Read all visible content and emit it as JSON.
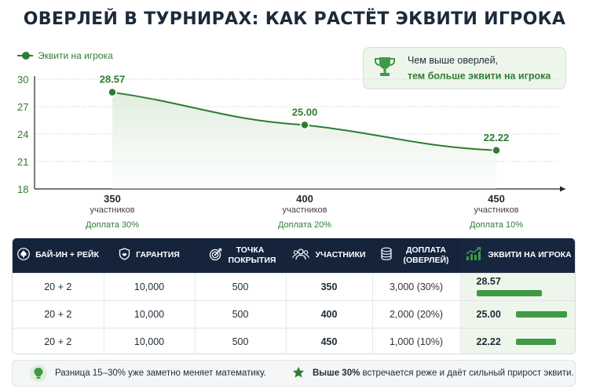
{
  "title": "ОВЕРЛЕЙ В ТУРНИРАХ: КАК РАСТЁТ ЭКВИТИ ИГРОКА",
  "colors": {
    "accent": "#2e7d32",
    "header_bg": "#15233b",
    "bar": "#3e9a45",
    "callout_bg": "#eef6ec"
  },
  "callout": {
    "icon": "trophy-icon",
    "line1": "Чем выше оверлей,",
    "line2": "тем больше эквити на игрока"
  },
  "chart_data": {
    "type": "line",
    "categories": [
      "350",
      "400",
      "450"
    ],
    "category_units": [
      "участников",
      "участников",
      "участников"
    ],
    "category_notes": [
      "Доплата 30%",
      "Доплата 20%",
      "Доплата 10%"
    ],
    "series": [
      {
        "name": "Эквити на игрока",
        "values": [
          28.57,
          25.0,
          22.22
        ],
        "labels": [
          "28.57",
          "25.00",
          "22.22"
        ]
      }
    ],
    "ylim": [
      18,
      30
    ],
    "yticks": [
      "18",
      "21",
      "24",
      "27",
      "30"
    ],
    "grid": true,
    "legend": "top-left"
  },
  "table": {
    "headers": [
      {
        "icon": "spade-icon",
        "label": "БАЙ-ИН + РЕЙК"
      },
      {
        "icon": "shield-icon",
        "label": "ГАРАНТИЯ"
      },
      {
        "icon": "target-icon",
        "label": "ТОЧКА ПОКРЫТИЯ"
      },
      {
        "icon": "people-icon",
        "label": "УЧАСТНИКИ"
      },
      {
        "icon": "coins-icon",
        "label": "ДОПЛАТА (ОВЕРЛЕЙ)"
      },
      {
        "icon": "growth-chart-icon",
        "label": "ЭКВИТИ НА ИГРОКА"
      }
    ],
    "rows": [
      {
        "buyin": "20 + 2",
        "guarantee": "10,000",
        "breakeven": "500",
        "players": "350",
        "extra": "3,000 (30%)",
        "equity": "28.57",
        "equity_value": 28.57
      },
      {
        "buyin": "20 + 2",
        "guarantee": "10,000",
        "breakeven": "500",
        "players": "400",
        "extra": "2,000 (20%)",
        "equity": "25.00",
        "equity_value": 25.0
      },
      {
        "buyin": "20 + 2",
        "guarantee": "10,000",
        "breakeven": "500",
        "players": "450",
        "extra": "1,000 (10%)",
        "equity": "22.22",
        "equity_value": 22.22
      }
    ]
  },
  "footer": {
    "left": {
      "icon": "lightbulb-icon",
      "text": "Разница 15–30% уже заметно меняет математику."
    },
    "right": {
      "icon": "star-icon",
      "bold": "Выше 30%",
      "text": " встречается реже и даёт сильный прирост эквити."
    }
  }
}
